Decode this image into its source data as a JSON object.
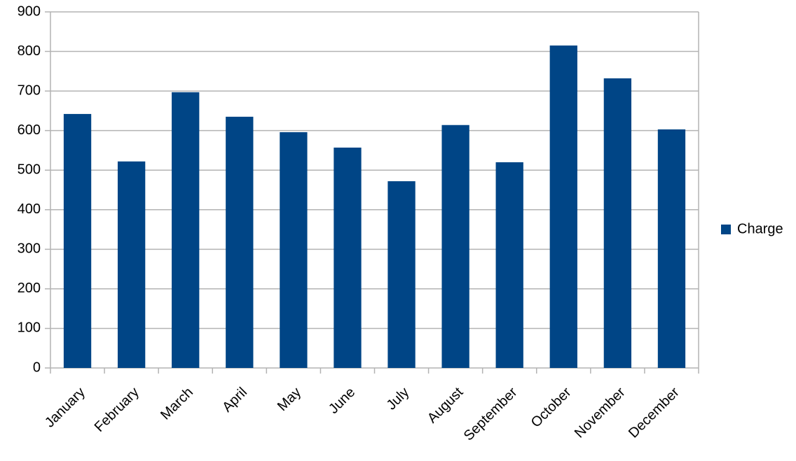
{
  "chart_data": {
    "type": "bar",
    "categories": [
      "January",
      "February",
      "March",
      "April",
      "May",
      "June",
      "July",
      "August",
      "September",
      "October",
      "November",
      "December"
    ],
    "series": [
      {
        "name": "Charge",
        "color": "#004586",
        "values": [
          642,
          522,
          697,
          635,
          596,
          557,
          472,
          614,
          520,
          815,
          732,
          603
        ]
      }
    ],
    "ylim": [
      0,
      900
    ],
    "yticks": [
      0,
      100,
      200,
      300,
      400,
      500,
      600,
      700,
      800,
      900
    ],
    "grid": true,
    "legend": "right"
  }
}
